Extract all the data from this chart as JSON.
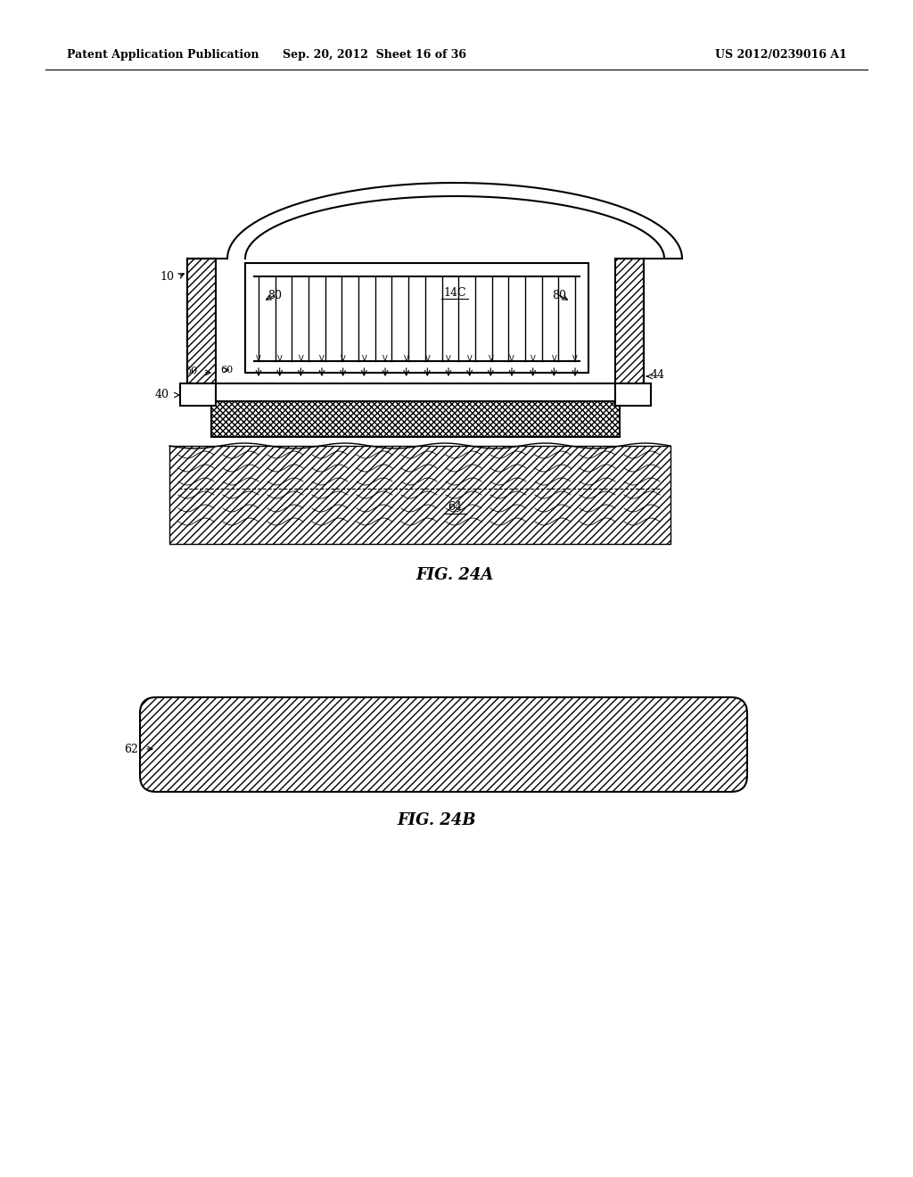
{
  "bg_color": "#ffffff",
  "line_color": "#000000",
  "header_left": "Patent Application Publication",
  "header_mid": "Sep. 20, 2012  Sheet 16 of 36",
  "header_right": "US 2012/0239016 A1",
  "fig24a_label": "FIG. 24A",
  "fig24b_label": "FIG. 24B"
}
